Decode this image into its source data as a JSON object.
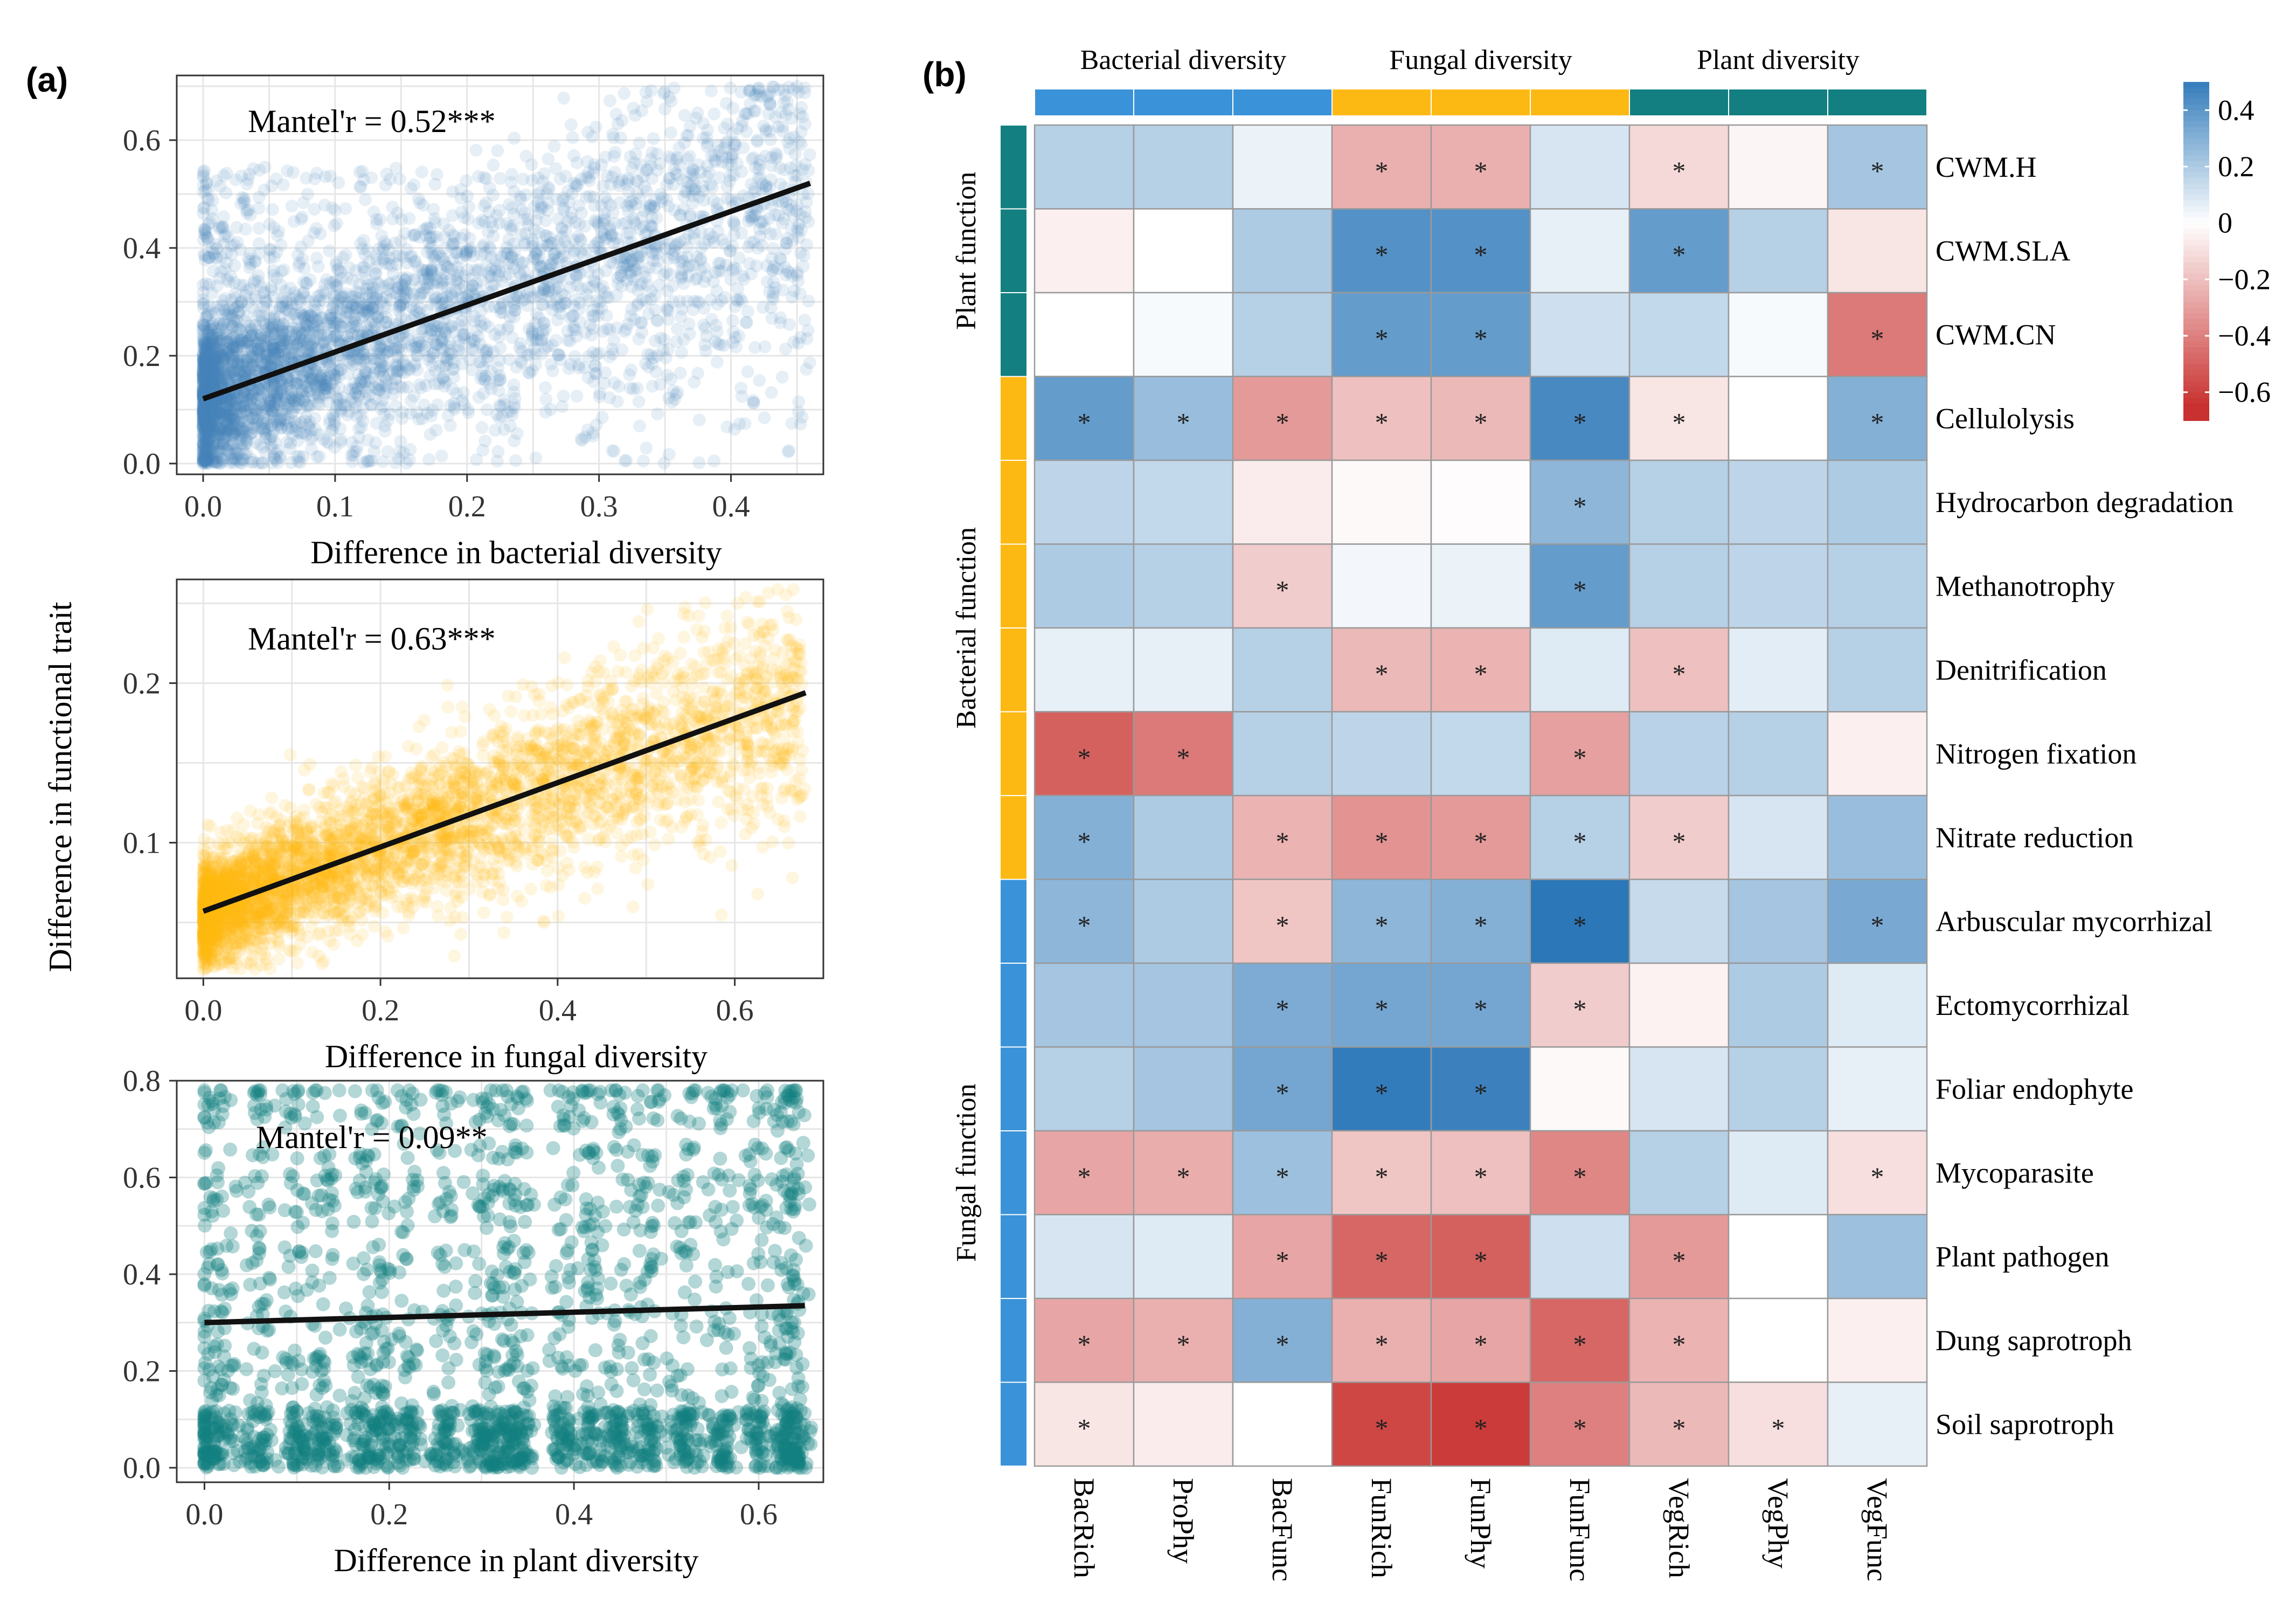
{
  "panel_labels": [
    "(a)",
    "(b)"
  ],
  "colors": {
    "bacteria": "#4680BC",
    "fungi": "#FDB813",
    "plant": "#137F80",
    "grid": "#E6E6E6",
    "heat_negative": "#C8312F",
    "heat_zero": "#FFFFFF",
    "heat_positive": "#1F6FB4"
  },
  "chart_data": [
    {
      "type": "scatter",
      "id": "bacterial",
      "title": "",
      "annotation": "Mantel'r = 0.52***",
      "xlabel": "Difference in bacterial diversity",
      "ylabel": "Difference in functional trait",
      "xlim": [
        -0.02,
        0.47
      ],
      "ylim": [
        -0.02,
        0.72
      ],
      "xticks": [
        0.0,
        0.1,
        0.2,
        0.3,
        0.4
      ],
      "xtick_labels": [
        "0.0",
        "0.1",
        "0.2",
        "0.3",
        "0.4"
      ],
      "yticks": [
        0.0,
        0.2,
        0.4,
        0.6
      ],
      "ytick_labels": [
        "0.0",
        "0.2",
        "0.4",
        "0.6"
      ],
      "color": "#4680BC",
      "fit": {
        "x": [
          0.0,
          0.46
        ],
        "y": [
          0.12,
          0.52
        ]
      },
      "point_cloud": {
        "n": 4200,
        "x_max": 0.46,
        "x_skew": 2.2,
        "noise": 0.09,
        "y_floor": 0.0,
        "y_cap": 0.7,
        "shape": "linear"
      }
    },
    {
      "type": "scatter",
      "id": "fungal",
      "title": "",
      "annotation": "Mantel'r = 0.63***",
      "xlabel": "Difference in fungal diversity",
      "ylabel": "",
      "xlim": [
        -0.03,
        0.7
      ],
      "ylim": [
        0.015,
        0.265
      ],
      "xticks": [
        0.0,
        0.2,
        0.4,
        0.6
      ],
      "xtick_labels": [
        "0.0",
        "0.2",
        "0.4",
        "0.6"
      ],
      "yticks": [
        0.1,
        0.2
      ],
      "ytick_labels": [
        "0.1",
        "0.2"
      ],
      "color": "#FDB813",
      "fit": {
        "x": [
          0.0,
          0.68
        ],
        "y": [
          0.057,
          0.194
        ]
      },
      "point_cloud": {
        "n": 4200,
        "x_max": 0.68,
        "x_skew": 1.9,
        "noise": 0.022,
        "y_floor": 0.02,
        "y_cap": 0.26,
        "shape": "linear"
      }
    },
    {
      "type": "scatter",
      "id": "plant",
      "title": "",
      "annotation": "Mantel'r = 0.09**",
      "xlabel": "Difference in plant diversity",
      "ylabel": "",
      "xlim": [
        -0.03,
        0.67
      ],
      "ylim": [
        -0.03,
        0.8
      ],
      "xticks": [
        0.0,
        0.2,
        0.4,
        0.6
      ],
      "xtick_labels": [
        "0.0",
        "0.2",
        "0.4",
        "0.6"
      ],
      "yticks": [
        0.0,
        0.2,
        0.4,
        0.6,
        0.8
      ],
      "ytick_labels": [
        "0.0",
        "0.2",
        "0.4",
        "0.6",
        "0.8"
      ],
      "color": "#137F80",
      "fit": {
        "x": [
          0.0,
          0.65
        ],
        "y": [
          0.3,
          0.335
        ]
      },
      "point_cloud": {
        "n": 2400,
        "x_max": 0.65,
        "noise": 0.0,
        "y_floor": 0.0,
        "y_cap": 0.78,
        "shape": "columns",
        "column_x": [
          0.0,
          0.02,
          0.06,
          0.1,
          0.13,
          0.17,
          0.19,
          0.22,
          0.26,
          0.3,
          0.32,
          0.34,
          0.39,
          0.42,
          0.45,
          0.48,
          0.52,
          0.56,
          0.6,
          0.63,
          0.64
        ],
        "row_y": [
          0.01,
          0.03,
          0.06,
          0.08,
          0.12,
          0.16,
          0.2,
          0.23,
          0.28,
          0.32,
          0.37,
          0.41,
          0.45,
          0.5,
          0.54,
          0.57,
          0.6,
          0.65,
          0.72,
          0.76,
          0.78
        ]
      }
    },
    {
      "type": "heatmap",
      "id": "correlation",
      "title": "",
      "columns": [
        "BacRich",
        "ProPhy",
        "BacFunc",
        "FunRich",
        "FunPhy",
        "FunFunc",
        "VegRich",
        "VegPhy",
        "VegFunc"
      ],
      "rows": [
        "CWM.H",
        "CWM.SLA",
        "CWM.CN",
        "Cellulolysis",
        "Hydrocarbon degradation",
        "Methanotrophy",
        "Denitrification",
        "Nitrogen fixation",
        "Nitrate reduction",
        "Arbuscular mycorrhizal",
        "Ectomycorrhizal",
        "Foliar endophyte",
        "Mycoparasite",
        "Plant pathogen",
        "Dung saprotroph",
        "Soil saprotroph"
      ],
      "column_groups": [
        {
          "label": "Bacterial diversity",
          "color": "#3A93D8",
          "span": 3
        },
        {
          "label": "Fungal diversity",
          "color": "#FDB913",
          "span": 3
        },
        {
          "label": "Plant diversity",
          "color": "#137F80",
          "span": 3
        }
      ],
      "row_groups": [
        {
          "label": "Plant function",
          "color": "#137F80",
          "span": 3
        },
        {
          "label": "Bacterial function",
          "color": "#FDB913",
          "span": 6
        },
        {
          "label": "Fungal function",
          "color": "#3A93D8",
          "span": 7
        }
      ],
      "values": [
        [
          0.18,
          0.18,
          0.05,
          -0.25,
          -0.25,
          0.1,
          -0.12,
          -0.03,
          0.22
        ],
        [
          -0.05,
          0.0,
          0.2,
          0.42,
          0.42,
          0.06,
          0.38,
          0.18,
          -0.08
        ],
        [
          0.0,
          0.02,
          0.18,
          0.38,
          0.38,
          0.12,
          0.15,
          0.02,
          -0.42
        ],
        [
          0.38,
          0.25,
          -0.32,
          -0.2,
          -0.22,
          0.45,
          -0.08,
          0.0,
          0.3
        ],
        [
          0.16,
          0.15,
          -0.06,
          -0.02,
          -0.01,
          0.28,
          0.18,
          0.16,
          0.2
        ],
        [
          0.2,
          0.18,
          -0.16,
          0.03,
          0.05,
          0.38,
          0.18,
          0.16,
          0.18
        ],
        [
          0.06,
          0.06,
          0.18,
          -0.22,
          -0.24,
          0.08,
          -0.2,
          0.07,
          0.18
        ],
        [
          -0.5,
          -0.42,
          0.18,
          0.16,
          0.15,
          -0.3,
          0.17,
          0.18,
          -0.05
        ],
        [
          0.3,
          0.2,
          -0.24,
          -0.34,
          -0.32,
          0.18,
          -0.16,
          0.1,
          0.25
        ],
        [
          0.28,
          0.2,
          -0.18,
          0.28,
          0.3,
          0.52,
          0.14,
          0.22,
          0.33
        ],
        [
          0.22,
          0.22,
          0.32,
          0.34,
          0.34,
          -0.16,
          -0.04,
          0.2,
          0.08
        ],
        [
          0.18,
          0.22,
          0.34,
          0.5,
          0.48,
          -0.02,
          0.1,
          0.18,
          0.06
        ],
        [
          -0.28,
          -0.26,
          0.24,
          -0.18,
          -0.2,
          -0.38,
          0.18,
          0.08,
          -0.1
        ],
        [
          0.1,
          0.08,
          -0.28,
          -0.48,
          -0.5,
          0.12,
          -0.32,
          0.0,
          0.24
        ],
        [
          -0.28,
          -0.25,
          0.3,
          -0.25,
          -0.28,
          -0.48,
          -0.24,
          0.0,
          -0.05
        ],
        [
          -0.08,
          -0.06,
          0.0,
          -0.58,
          -0.62,
          -0.4,
          -0.22,
          -0.1,
          0.06
        ]
      ],
      "significant": [
        [
          0,
          0,
          0,
          1,
          1,
          0,
          1,
          0,
          1
        ],
        [
          0,
          0,
          0,
          1,
          1,
          0,
          1,
          0,
          0
        ],
        [
          0,
          0,
          0,
          1,
          1,
          0,
          0,
          0,
          1
        ],
        [
          1,
          1,
          1,
          1,
          1,
          1,
          1,
          0,
          1
        ],
        [
          0,
          0,
          0,
          0,
          0,
          1,
          0,
          0,
          0
        ],
        [
          0,
          0,
          1,
          0,
          0,
          1,
          0,
          0,
          0
        ],
        [
          0,
          0,
          0,
          1,
          1,
          0,
          1,
          0,
          0
        ],
        [
          1,
          1,
          0,
          0,
          0,
          1,
          0,
          0,
          0
        ],
        [
          1,
          0,
          1,
          1,
          1,
          1,
          1,
          0,
          0
        ],
        [
          1,
          0,
          1,
          1,
          1,
          1,
          0,
          0,
          1
        ],
        [
          0,
          0,
          1,
          1,
          1,
          1,
          0,
          0,
          0
        ],
        [
          0,
          0,
          1,
          1,
          1,
          0,
          0,
          0,
          0
        ],
        [
          1,
          1,
          1,
          1,
          1,
          1,
          0,
          0,
          1
        ],
        [
          0,
          0,
          1,
          1,
          1,
          0,
          1,
          0,
          0
        ],
        [
          1,
          1,
          1,
          1,
          1,
          1,
          1,
          0,
          0
        ],
        [
          1,
          0,
          0,
          1,
          1,
          1,
          1,
          1,
          0
        ]
      ],
      "significance_symbol": "*",
      "legend": {
        "range": [
          -0.7,
          0.5
        ],
        "ticks": [
          0.4,
          0.2,
          0,
          -0.2,
          -0.4,
          -0.6
        ],
        "tick_labels": [
          "0.4",
          "0.2",
          "0",
          "−0.2",
          "−0.4",
          "−0.6"
        ]
      }
    }
  ]
}
